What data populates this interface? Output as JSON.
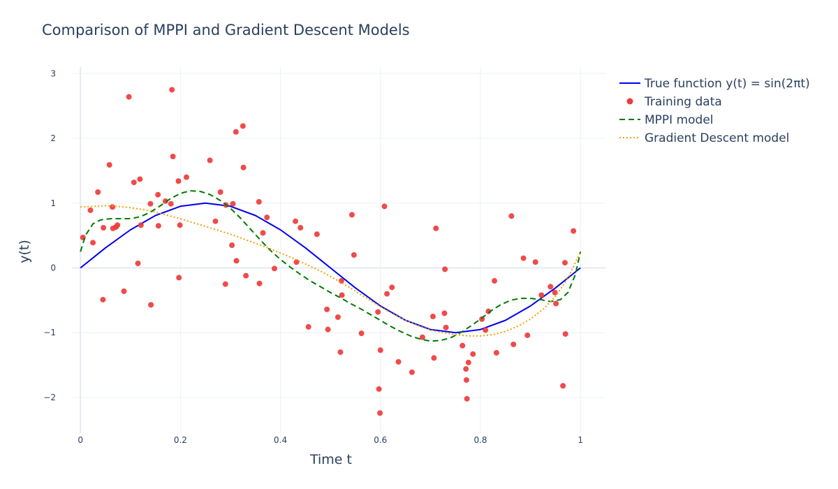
{
  "chart_data": {
    "type": "scatter",
    "title": "Comparison of MPPI and Gradient Descent Models",
    "xlabel": "Time t",
    "ylabel": "y(t)",
    "xlim": [
      -0.017,
      1.05
    ],
    "ylim": [
      -2.55,
      3.1
    ],
    "xticks": [
      0,
      0.2,
      0.4,
      0.6,
      0.8,
      1
    ],
    "xtick_labels": [
      "0",
      "0.2",
      "0.4",
      "0.6",
      "0.8",
      "1"
    ],
    "yticks": [
      -2,
      -1,
      0,
      1,
      2,
      3
    ],
    "ytick_labels": [
      "−2",
      "−1",
      "0",
      "1",
      "2",
      "3"
    ],
    "grid": true,
    "legend_position": "top-right, outside plot",
    "colors": {
      "true_function": "#0000ee",
      "training_data": "#ef3b3b",
      "mppi": "#007a00",
      "gradient_descent": "#f0a000",
      "grid": "#ebf0f8",
      "zero_line": "#e4e9f3",
      "text": "#2a3f5f"
    },
    "series": [
      {
        "name": "True function y(t) = sin(2πt)",
        "mode": "line",
        "style": "solid",
        "x": [
          0,
          0.05,
          0.1,
          0.15,
          0.2,
          0.25,
          0.3,
          0.35,
          0.4,
          0.45,
          0.5,
          0.55,
          0.6,
          0.65,
          0.7,
          0.75,
          0.8,
          0.85,
          0.9,
          0.95,
          1.0
        ],
        "y": [
          0,
          0.309,
          0.588,
          0.809,
          0.951,
          1.0,
          0.951,
          0.809,
          0.588,
          0.309,
          0,
          -0.309,
          -0.588,
          -0.809,
          -0.951,
          -1.0,
          -0.951,
          -0.809,
          -0.588,
          -0.309,
          0
        ]
      },
      {
        "name": "Training data",
        "mode": "markers",
        "x": [
          0.005,
          0.02,
          0.025,
          0.035,
          0.045,
          0.046,
          0.058,
          0.064,
          0.065,
          0.071,
          0.074,
          0.087,
          0.097,
          0.107,
          0.115,
          0.119,
          0.121,
          0.14,
          0.141,
          0.155,
          0.156,
          0.17,
          0.181,
          0.183,
          0.185,
          0.196,
          0.197,
          0.199,
          0.212,
          0.259,
          0.27,
          0.28,
          0.29,
          0.291,
          0.303,
          0.305,
          0.311,
          0.312,
          0.325,
          0.326,
          0.331,
          0.357,
          0.358,
          0.365,
          0.373,
          0.388,
          0.43,
          0.432,
          0.44,
          0.456,
          0.473,
          0.493,
          0.495,
          0.515,
          0.52,
          0.522,
          0.523,
          0.543,
          0.547,
          0.562,
          0.595,
          0.597,
          0.599,
          0.6,
          0.608,
          0.613,
          0.623,
          0.636,
          0.663,
          0.684,
          0.705,
          0.707,
          0.711,
          0.728,
          0.729,
          0.731,
          0.764,
          0.771,
          0.772,
          0.773,
          0.776,
          0.785,
          0.803,
          0.81,
          0.816,
          0.828,
          0.832,
          0.862,
          0.866,
          0.886,
          0.894,
          0.91,
          0.922,
          0.94,
          0.949,
          0.951,
          0.965,
          0.969,
          0.97,
          0.986
        ],
        "y": [
          0.47,
          0.89,
          0.39,
          1.17,
          -0.49,
          0.62,
          1.59,
          0.94,
          0.61,
          0.63,
          0.66,
          -0.36,
          2.64,
          1.32,
          0.07,
          1.37,
          0.66,
          0.99,
          -0.57,
          1.13,
          0.65,
          1.03,
          0.99,
          2.75,
          1.72,
          1.34,
          -0.15,
          0.66,
          1.4,
          1.66,
          0.72,
          1.17,
          -0.25,
          0.97,
          0.35,
          0.99,
          2.1,
          0.11,
          2.19,
          1.55,
          -0.12,
          1.02,
          -0.24,
          0.54,
          0.78,
          -0.01,
          0.72,
          0.09,
          0.62,
          -0.91,
          0.52,
          -0.64,
          -0.95,
          -0.76,
          -1.3,
          -0.2,
          -0.42,
          0.82,
          0.2,
          -1.01,
          -0.68,
          -1.87,
          -2.24,
          -1.27,
          0.95,
          -0.4,
          -0.3,
          -1.45,
          -1.61,
          -1.07,
          -0.75,
          -1.39,
          0.61,
          -0.7,
          -0.02,
          -0.92,
          -1.2,
          -1.56,
          -1.73,
          -2.02,
          -1.46,
          -1.33,
          -0.79,
          -0.96,
          -0.67,
          -0.2,
          -1.31,
          0.8,
          -1.18,
          0.15,
          -1.04,
          0.09,
          -0.42,
          -0.29,
          -0.38,
          -0.55,
          -1.82,
          0.08,
          -1.02,
          0.57
        ]
      },
      {
        "name": "MPPI model",
        "mode": "line",
        "style": "dash",
        "x": [
          0,
          0.01,
          0.025,
          0.04,
          0.06,
          0.08,
          0.1,
          0.12,
          0.14,
          0.16,
          0.18,
          0.2,
          0.22,
          0.24,
          0.26,
          0.28,
          0.3,
          0.32,
          0.34,
          0.36,
          0.38,
          0.4,
          0.42,
          0.44,
          0.46,
          0.48,
          0.5,
          0.52,
          0.54,
          0.56,
          0.58,
          0.6,
          0.62,
          0.64,
          0.66,
          0.68,
          0.7,
          0.72,
          0.74,
          0.76,
          0.78,
          0.8,
          0.82,
          0.84,
          0.86,
          0.88,
          0.9,
          0.92,
          0.94,
          0.96,
          0.975,
          0.99,
          1.0
        ],
        "y": [
          0.25,
          0.5,
          0.68,
          0.74,
          0.76,
          0.76,
          0.76,
          0.79,
          0.86,
          0.96,
          1.07,
          1.15,
          1.19,
          1.18,
          1.13,
          1.04,
          0.92,
          0.77,
          0.6,
          0.43,
          0.27,
          0.13,
          0.01,
          -0.1,
          -0.2,
          -0.29,
          -0.38,
          -0.46,
          -0.55,
          -0.63,
          -0.72,
          -0.81,
          -0.9,
          -0.98,
          -1.05,
          -1.1,
          -1.13,
          -1.12,
          -1.08,
          -1.0,
          -0.9,
          -0.79,
          -0.67,
          -0.57,
          -0.5,
          -0.47,
          -0.47,
          -0.49,
          -0.52,
          -0.49,
          -0.38,
          -0.1,
          0.25
        ]
      },
      {
        "name": "Gradient Descent model",
        "mode": "line",
        "style": "dot",
        "x": [
          0,
          0.025,
          0.05,
          0.075,
          0.1,
          0.125,
          0.15,
          0.175,
          0.2,
          0.225,
          0.25,
          0.275,
          0.3,
          0.325,
          0.35,
          0.375,
          0.4,
          0.425,
          0.45,
          0.475,
          0.5,
          0.525,
          0.55,
          0.575,
          0.6,
          0.625,
          0.65,
          0.675,
          0.7,
          0.725,
          0.75,
          0.775,
          0.8,
          0.825,
          0.85,
          0.875,
          0.9,
          0.925,
          0.95,
          0.975,
          1.0
        ],
        "y": [
          0.94,
          0.95,
          0.96,
          0.95,
          0.93,
          0.9,
          0.86,
          0.81,
          0.76,
          0.7,
          0.64,
          0.58,
          0.52,
          0.45,
          0.38,
          0.31,
          0.23,
          0.15,
          0.06,
          -0.03,
          -0.13,
          -0.24,
          -0.36,
          -0.48,
          -0.6,
          -0.71,
          -0.81,
          -0.89,
          -0.96,
          -1.0,
          -1.03,
          -1.05,
          -1.05,
          -1.03,
          -0.98,
          -0.9,
          -0.79,
          -0.64,
          -0.44,
          -0.16,
          0.25
        ]
      }
    ]
  }
}
